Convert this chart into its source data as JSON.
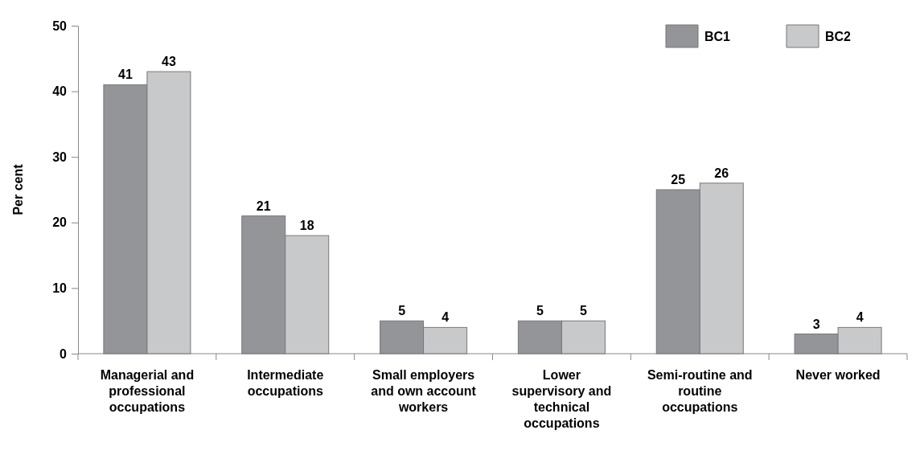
{
  "chart_data": {
    "type": "bar",
    "ylabel": "Per cent",
    "categories": [
      "Managerial and professional occupations",
      "Intermediate occupations",
      "Small employers and own account workers",
      "Lower supervisory and technical occupations",
      "Semi-routine and routine occupations",
      "Never worked"
    ],
    "series": [
      {
        "name": "BC1",
        "color": "#939598",
        "values": [
          41,
          21,
          5,
          5,
          25,
          3
        ]
      },
      {
        "name": "BC2",
        "color": "#c8c9cb",
        "values": [
          43,
          18,
          4,
          5,
          26,
          4
        ]
      }
    ],
    "ylim": [
      0,
      50
    ],
    "yticks": [
      0,
      10,
      20,
      30,
      40,
      50
    ],
    "data_labels": true,
    "legend": "top right",
    "grid": false
  }
}
